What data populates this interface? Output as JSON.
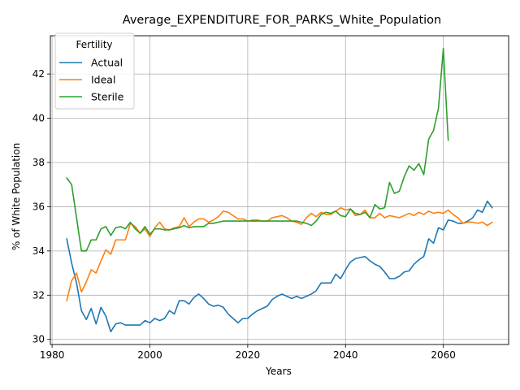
{
  "chart_data": {
    "type": "line",
    "title": "Average_EXPENDITURE_FOR_PARKS_White_Population",
    "xlabel": "Years",
    "ylabel": "% of White Population",
    "xlim": [
      1979.65,
      1987.35
    ],
    "x_domain": [
      1979.65,
      2073.35
    ],
    "ylim": [
      29.77,
      43.73
    ],
    "x_ticks": [
      "1980",
      "2000",
      "2020",
      "2040",
      "2060"
    ],
    "x_tick_values": [
      1980,
      2000,
      2020,
      2040,
      2060
    ],
    "y_ticks": [
      "30",
      "32",
      "34",
      "36",
      "38",
      "40",
      "42"
    ],
    "y_tick_values": [
      30,
      32,
      34,
      36,
      38,
      40,
      42
    ],
    "grid": true,
    "legend": {
      "title": "Fertility",
      "position": "top-left"
    },
    "series": [
      {
        "name": "Actual",
        "color": "#1f77b4",
        "x": [
          1983,
          1984,
          1985,
          1986,
          1987,
          1988,
          1989,
          1990,
          1991,
          1992,
          1993,
          1994,
          1995,
          1996,
          1997,
          1998,
          1999,
          2000,
          2001,
          2002,
          2003,
          2004,
          2005,
          2006,
          2007,
          2008,
          2009,
          2010,
          2011,
          2012,
          2013,
          2014,
          2015,
          2016,
          2017,
          2018,
          2019,
          2020,
          2021,
          2022,
          2023,
          2024,
          2025,
          2026,
          2027,
          2028,
          2029,
          2030,
          2031,
          2032,
          2033,
          2034,
          2035,
          2036,
          2037,
          2038,
          2039,
          2040,
          2041,
          2042,
          2043,
          2044,
          2045,
          2046,
          2047,
          2048,
          2049,
          2050,
          2051,
          2052,
          2053,
          2054,
          2055,
          2056,
          2057,
          2058,
          2059,
          2060,
          2061,
          2062,
          2063,
          2064,
          2065,
          2066,
          2067,
          2068,
          2069,
          2070
        ],
        "values": [
          34.55,
          33.45,
          32.55,
          31.3,
          30.9,
          31.4,
          30.7,
          31.45,
          31.05,
          30.35,
          30.7,
          30.75,
          30.65,
          30.65,
          30.65,
          30.65,
          30.85,
          30.75,
          30.95,
          30.85,
          30.95,
          31.3,
          31.15,
          31.75,
          31.75,
          31.6,
          31.9,
          32.05,
          31.85,
          31.6,
          31.5,
          31.55,
          31.45,
          31.15,
          30.95,
          30.75,
          30.95,
          30.95,
          31.15,
          31.3,
          31.4,
          31.5,
          31.8,
          31.95,
          32.05,
          31.95,
          31.85,
          31.95,
          31.85,
          31.95,
          32.05,
          32.2,
          32.55,
          32.55,
          32.55,
          32.95,
          32.75,
          33.15,
          33.5,
          33.65,
          33.7,
          33.75,
          33.55,
          33.4,
          33.3,
          33.05,
          32.75,
          32.75,
          32.85,
          33.05,
          33.1,
          33.4,
          33.6,
          33.75,
          34.55,
          34.35,
          35.05,
          34.95,
          35.4,
          35.35,
          35.25,
          35.25,
          35.35,
          35.5,
          35.85,
          35.75,
          36.25,
          35.95
        ]
      },
      {
        "name": "Ideal",
        "color": "#ff7f0e",
        "x": [
          1983,
          1984,
          1985,
          1986,
          1987,
          1988,
          1989,
          1990,
          1991,
          1992,
          1993,
          1994,
          1995,
          1996,
          1997,
          1998,
          1999,
          2000,
          2001,
          2002,
          2003,
          2004,
          2005,
          2006,
          2007,
          2008,
          2009,
          2010,
          2011,
          2012,
          2013,
          2014,
          2015,
          2016,
          2017,
          2018,
          2019,
          2020,
          2021,
          2022,
          2023,
          2024,
          2025,
          2026,
          2027,
          2028,
          2029,
          2030,
          2031,
          2032,
          2033,
          2034,
          2035,
          2036,
          2037,
          2038,
          2039,
          2040,
          2041,
          2042,
          2043,
          2044,
          2045,
          2046,
          2047,
          2048,
          2049,
          2050,
          2051,
          2052,
          2053,
          2054,
          2055,
          2056,
          2057,
          2058,
          2059,
          2060,
          2061,
          2062,
          2063,
          2064,
          2065,
          2066,
          2067,
          2068,
          2069,
          2070
        ],
        "values": [
          31.75,
          32.65,
          33.0,
          32.15,
          32.6,
          33.15,
          33.0,
          33.55,
          34.05,
          33.85,
          34.5,
          34.5,
          34.5,
          35.25,
          35.1,
          34.8,
          35.0,
          34.65,
          35.05,
          35.3,
          35.0,
          34.95,
          35.05,
          35.1,
          35.5,
          35.1,
          35.3,
          35.45,
          35.45,
          35.3,
          35.4,
          35.55,
          35.8,
          35.75,
          35.6,
          35.45,
          35.45,
          35.35,
          35.4,
          35.4,
          35.35,
          35.35,
          35.5,
          35.55,
          35.6,
          35.5,
          35.35,
          35.3,
          35.2,
          35.5,
          35.7,
          35.55,
          35.75,
          35.65,
          35.65,
          35.8,
          35.95,
          35.85,
          35.9,
          35.6,
          35.65,
          35.85,
          35.5,
          35.5,
          35.7,
          35.5,
          35.6,
          35.55,
          35.5,
          35.6,
          35.7,
          35.6,
          35.75,
          35.65,
          35.8,
          35.7,
          35.75,
          35.7,
          35.85,
          35.65,
          35.5,
          35.25,
          35.3,
          35.3,
          35.25,
          35.3,
          35.15,
          35.3
        ]
      },
      {
        "name": "Sterile",
        "color": "#2ca02c",
        "x": [
          1983,
          1984,
          1985,
          1986,
          1987,
          1988,
          1989,
          1990,
          1991,
          1992,
          1993,
          1994,
          1995,
          1996,
          1997,
          1998,
          1999,
          2000,
          2001,
          2002,
          2003,
          2004,
          2005,
          2006,
          2007,
          2008,
          2009,
          2010,
          2011,
          2012,
          2013,
          2014,
          2015,
          2016,
          2017,
          2018,
          2019,
          2020,
          2021,
          2022,
          2023,
          2024,
          2025,
          2026,
          2027,
          2028,
          2029,
          2030,
          2031,
          2032,
          2033,
          2034,
          2035,
          2036,
          2037,
          2038,
          2039,
          2040,
          2041,
          2042,
          2043,
          2044,
          2045,
          2046,
          2047,
          2048,
          2049,
          2050,
          2051,
          2052,
          2053,
          2054,
          2055,
          2056,
          2057,
          2058,
          2059,
          2060,
          2061
        ],
        "values": [
          37.3,
          37.0,
          35.5,
          34.0,
          34.0,
          34.5,
          34.5,
          35.0,
          35.1,
          34.7,
          35.05,
          35.1,
          35.0,
          35.3,
          35.0,
          34.8,
          35.1,
          34.75,
          35.0,
          35.0,
          34.95,
          34.95,
          35.0,
          35.05,
          35.15,
          35.05,
          35.1,
          35.1,
          35.1,
          35.25,
          35.25,
          35.3,
          35.35,
          35.35,
          35.35,
          35.35,
          35.35,
          35.35,
          35.35,
          35.35,
          35.35,
          35.35,
          35.35,
          35.35,
          35.35,
          35.35,
          35.35,
          35.35,
          35.3,
          35.25,
          35.15,
          35.35,
          35.65,
          35.75,
          35.7,
          35.8,
          35.6,
          35.55,
          35.9,
          35.7,
          35.65,
          35.75,
          35.5,
          36.1,
          35.9,
          35.95,
          37.1,
          36.6,
          36.7,
          37.35,
          37.85,
          37.65,
          37.95,
          37.45,
          39.05,
          39.45,
          40.45,
          43.15,
          39.0
        ]
      }
    ]
  }
}
